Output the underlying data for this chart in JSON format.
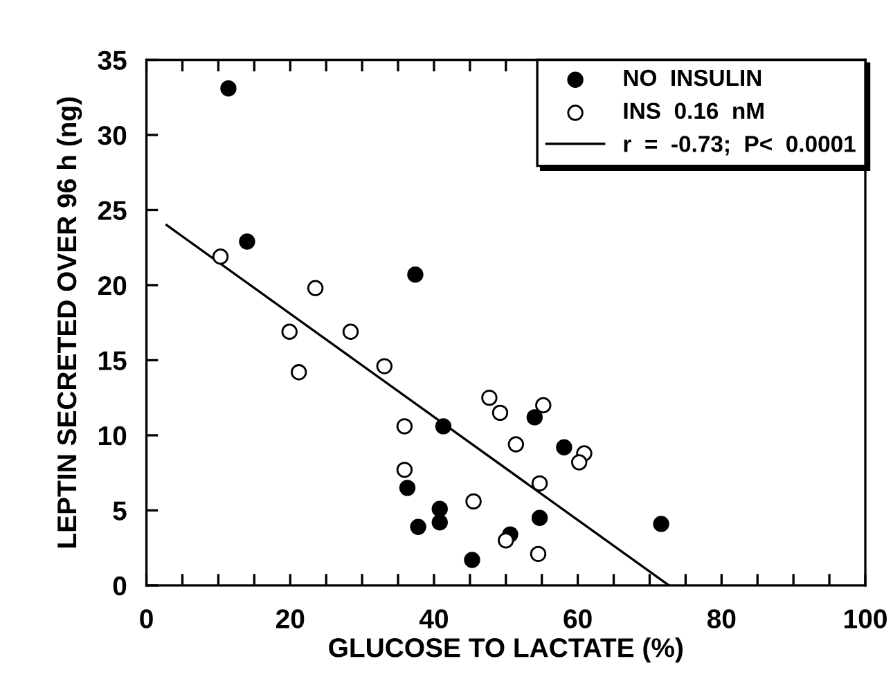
{
  "chart_data": {
    "type": "scatter",
    "xlabel": "GLUCOSE TO LACTATE (%)",
    "ylabel": "LEPTIN SECRETED OVER 96 h (ng)",
    "xlim": [
      0,
      100
    ],
    "ylim": [
      0,
      35
    ],
    "xticks": [
      0,
      {
        "value": 5,
        "label": null
      },
      {
        "value": 10,
        "label": null
      },
      {
        "value": 15,
        "label": null
      },
      20,
      {
        "value": 25,
        "label": null
      },
      {
        "value": 30,
        "label": null
      },
      {
        "value": 35,
        "label": null
      },
      40,
      {
        "value": 45,
        "label": null
      },
      {
        "value": 50,
        "label": null
      },
      {
        "value": 55,
        "label": null
      },
      60,
      {
        "value": 65,
        "label": null
      },
      {
        "value": 70,
        "label": null
      },
      {
        "value": 75,
        "label": null
      },
      80,
      {
        "value": 85,
        "label": null
      },
      {
        "value": 90,
        "label": null
      },
      {
        "value": 95,
        "label": null
      },
      100
    ],
    "yticks": [
      0,
      5,
      10,
      15,
      20,
      25,
      30,
      35
    ],
    "grid": false,
    "legend": "top right",
    "series": [
      {
        "name": "NO  INSULIN",
        "marker": "circle",
        "color": "#000000",
        "x": [
          11.4,
          14.0,
          37.4,
          41.3,
          36.3,
          37.8,
          40.8,
          40.8,
          45.3,
          50.6,
          54.0,
          54.7,
          58.1,
          71.6
        ],
        "values": [
          33.1,
          22.9,
          20.7,
          10.6,
          6.5,
          3.9,
          5.1,
          4.2,
          1.7,
          3.4,
          11.2,
          4.5,
          9.2,
          4.1
        ]
      },
      {
        "name": "INS  0.16  nM",
        "marker": "circle",
        "color": "#ffffff",
        "x": [
          10.3,
          23.5,
          19.9,
          28.4,
          21.2,
          33.1,
          35.9,
          35.9,
          47.7,
          49.2,
          55.2,
          51.4,
          54.7,
          45.5,
          50.0,
          54.5,
          60.9,
          60.2
        ],
        "values": [
          21.9,
          19.8,
          16.9,
          16.9,
          14.2,
          14.6,
          10.6,
          7.7,
          12.5,
          11.5,
          12.0,
          9.4,
          6.8,
          5.6,
          3.0,
          2.1,
          8.8,
          8.2
        ]
      },
      {
        "name": "r  =  -0.73;  P<  0.0001",
        "type": "line",
        "marker": "none",
        "line_style": "solid",
        "color": "#000000",
        "x": [
          2.8,
          72.7
        ],
        "values": [
          24.0,
          0.0
        ]
      }
    ]
  }
}
